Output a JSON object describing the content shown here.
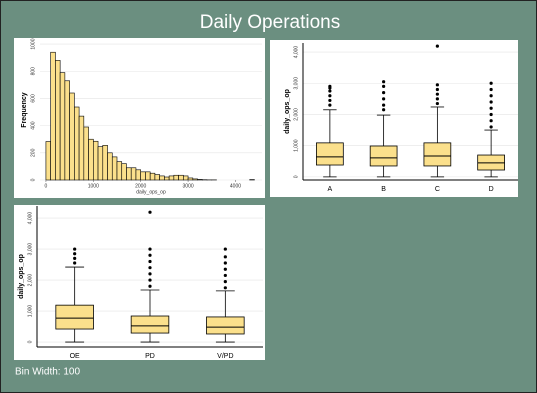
{
  "title": "Daily Operations",
  "footnote": "Bin Width: 100",
  "chart_data": [
    {
      "type": "histogram",
      "xlabel": "daily_ops_op",
      "ylabel": "Frequency",
      "color": "#fbe08c",
      "grid": true,
      "bins": [
        0,
        100,
        200,
        300,
        400,
        500,
        600,
        700,
        800,
        900,
        1000,
        1100,
        1200,
        1300,
        1400,
        1500,
        1600,
        1700,
        1800,
        1900,
        2000,
        2100,
        2200,
        2300,
        2400,
        2500,
        2600,
        2700,
        2800,
        2900,
        3000,
        3100,
        3200,
        3300,
        3400,
        3500,
        3600,
        3700,
        3800,
        3900,
        4000,
        4100,
        4200,
        4300,
        4400
      ],
      "counts": [
        283,
        940,
        880,
        790,
        730,
        640,
        537,
        470,
        390,
        300,
        285,
        245,
        255,
        200,
        170,
        135,
        120,
        90,
        90,
        75,
        60,
        60,
        50,
        40,
        30,
        22,
        30,
        35,
        35,
        30,
        15,
        8,
        4,
        2,
        1,
        1,
        0,
        0,
        0,
        0,
        0,
        0,
        0,
        3
      ],
      "xlim": [
        -125,
        4560
      ],
      "xticks": [
        0,
        1000,
        2000,
        3000,
        4000
      ],
      "ylim": [
        0,
        1030
      ],
      "yticks": [
        0,
        200,
        400,
        600,
        800,
        1000
      ]
    },
    {
      "type": "box",
      "ylabel": "daily_ops_op",
      "color": "#fbe08c",
      "grid": true,
      "categories": [
        "A",
        "B",
        "C",
        "D"
      ],
      "boxes": [
        {
          "min": 0,
          "q1": 380,
          "median": 640,
          "q3": 1090,
          "max": 2150,
          "outliers": [
            2300,
            2450,
            2600,
            2750,
            2850,
            2900
          ]
        },
        {
          "min": 0,
          "q1": 350,
          "median": 610,
          "q3": 990,
          "max": 1980,
          "outliers": [
            2150,
            2300,
            2500,
            2700,
            2900,
            3050
          ]
        },
        {
          "min": 0,
          "q1": 350,
          "median": 670,
          "q3": 1090,
          "max": 2240,
          "outliers": [
            2350,
            2500,
            2650,
            2800,
            2950,
            4190
          ]
        },
        {
          "min": 0,
          "q1": 220,
          "median": 450,
          "q3": 700,
          "max": 1500,
          "outliers": [
            1600,
            1800,
            2000,
            2200,
            2400,
            2600,
            2800,
            3000
          ]
        }
      ],
      "ylim": [
        -100,
        4290
      ],
      "yticks": [
        0,
        {
          "value": 1000,
          "label": "1,000"
        },
        {
          "value": 2000,
          "label": "2,000"
        },
        {
          "value": 3000,
          "label": "3,000"
        },
        {
          "value": 4000,
          "label": "4,000"
        }
      ]
    },
    {
      "type": "box",
      "ylabel": "daily_ops_op",
      "color": "#fbe08c",
      "grid": true,
      "categories": [
        "OE",
        "PD",
        "V/PD"
      ],
      "boxes": [
        {
          "min": 0,
          "q1": 420,
          "median": 770,
          "q3": 1190,
          "max": 2420,
          "outliers": [
            2550,
            2700,
            2850,
            3000
          ]
        },
        {
          "min": 0,
          "q1": 290,
          "median": 520,
          "q3": 840,
          "max": 1680,
          "outliers": [
            1800,
            2000,
            2200,
            2400,
            2600,
            2800,
            3000,
            4190
          ]
        },
        {
          "min": 0,
          "q1": 260,
          "median": 480,
          "q3": 810,
          "max": 1650,
          "outliers": [
            1750,
            1950,
            2150,
            2350,
            2550,
            2750,
            3000
          ]
        }
      ],
      "ylim": [
        -160,
        4390
      ],
      "yticks": [
        0,
        {
          "value": 1000,
          "label": "1,000"
        },
        {
          "value": 2000,
          "label": "2,000"
        },
        {
          "value": 3000,
          "label": "3,000"
        },
        {
          "value": 4000,
          "label": "4,000"
        }
      ]
    }
  ]
}
